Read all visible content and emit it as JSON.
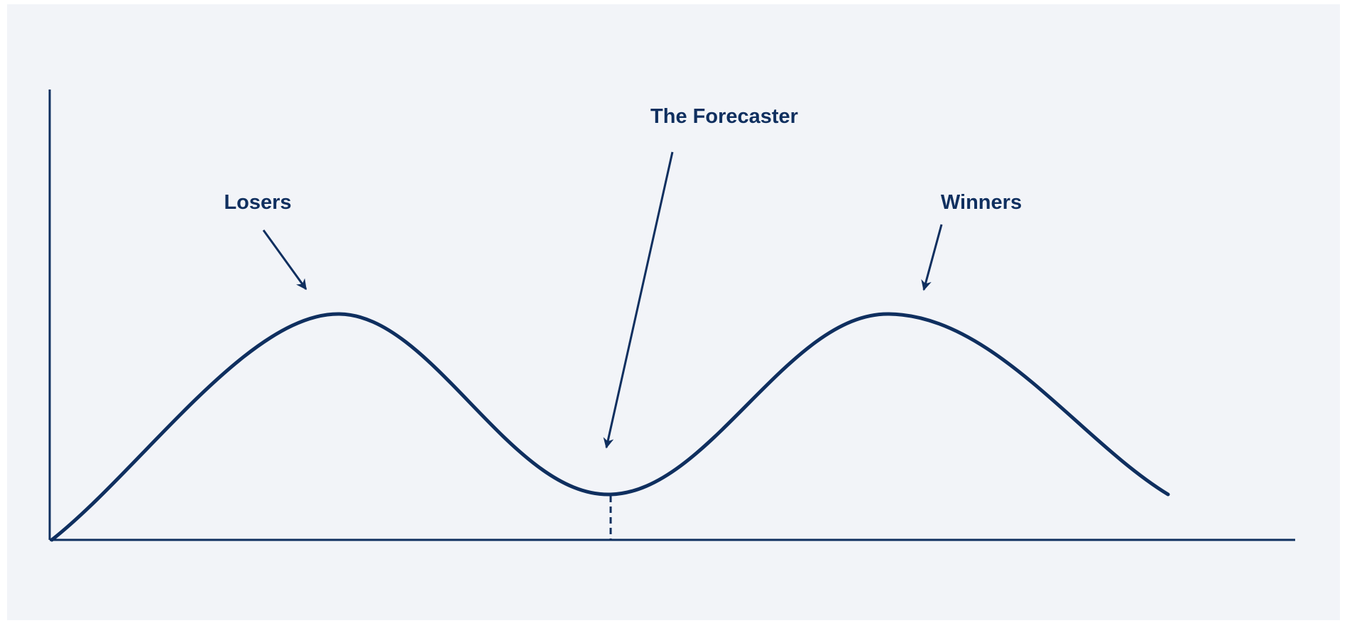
{
  "labels": {
    "losers": "Losers",
    "forecaster": "The Forecaster",
    "winners": "Winners"
  }
}
